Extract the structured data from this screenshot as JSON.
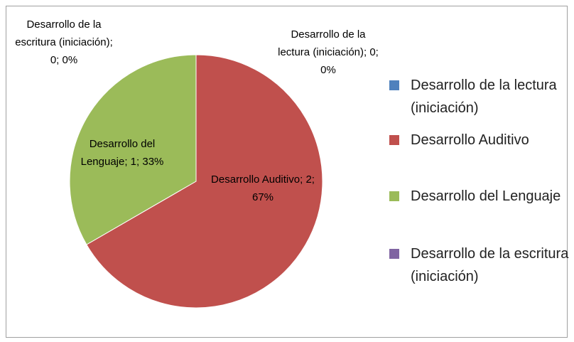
{
  "chart_data": {
    "type": "pie",
    "categories": [
      "Desarrollo de la lectura (iniciación)",
      "Desarrollo Auditivo",
      "Desarrollo del Lenguaje",
      "Desarrollo de la escritura (iniciación)"
    ],
    "values": [
      0,
      2,
      1,
      0
    ],
    "value_labels": [
      "Desarrollo de la lectura (iniciación); 0; 0%",
      "Desarrollo Auditivo; 2; 67%",
      "Desarrollo del Lenguaje; 1; 33%",
      "Desarrollo de la escritura (iniciación); 0; 0%"
    ],
    "colors": [
      "#4f81bd",
      "#c0504d",
      "#9bbb59",
      "#8064a2"
    ],
    "legend": "right"
  }
}
